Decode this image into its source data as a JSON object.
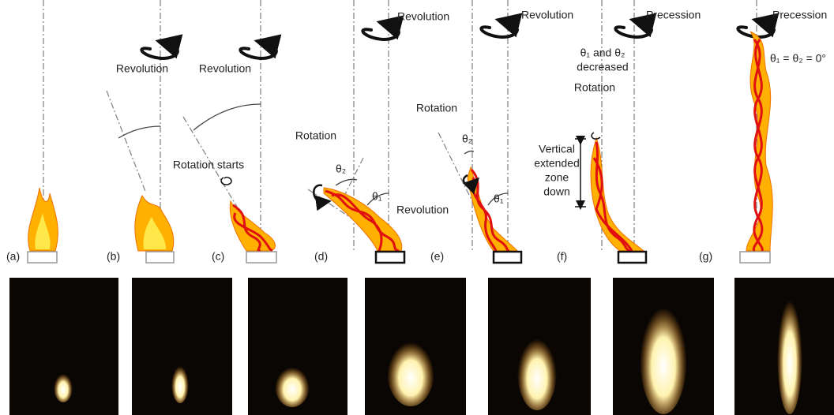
{
  "panels": [
    {
      "label": "(a)"
    },
    {
      "label": "(b)",
      "annotations": [
        "Revolution"
      ]
    },
    {
      "label": "(c)",
      "annotations": [
        "Revolution",
        "Rotation starts"
      ]
    },
    {
      "label": "(d)",
      "annotations": [
        "Revolution",
        "Rotation",
        "θ₂",
        "θ₁",
        "Revolution"
      ]
    },
    {
      "label": "(e)",
      "annotations": [
        "Revolution",
        "Rotation",
        "θ₂",
        "θ₁"
      ]
    },
    {
      "label": "(f)",
      "annotations": [
        "Precession",
        "θ₁ and θ₂",
        "decreased",
        "Rotation",
        "Vertical",
        "extended",
        "zone",
        "down"
      ]
    },
    {
      "label": "(g)",
      "annotations": [
        "Precession",
        "θ₁ = θ₂ = 0°"
      ]
    }
  ]
}
